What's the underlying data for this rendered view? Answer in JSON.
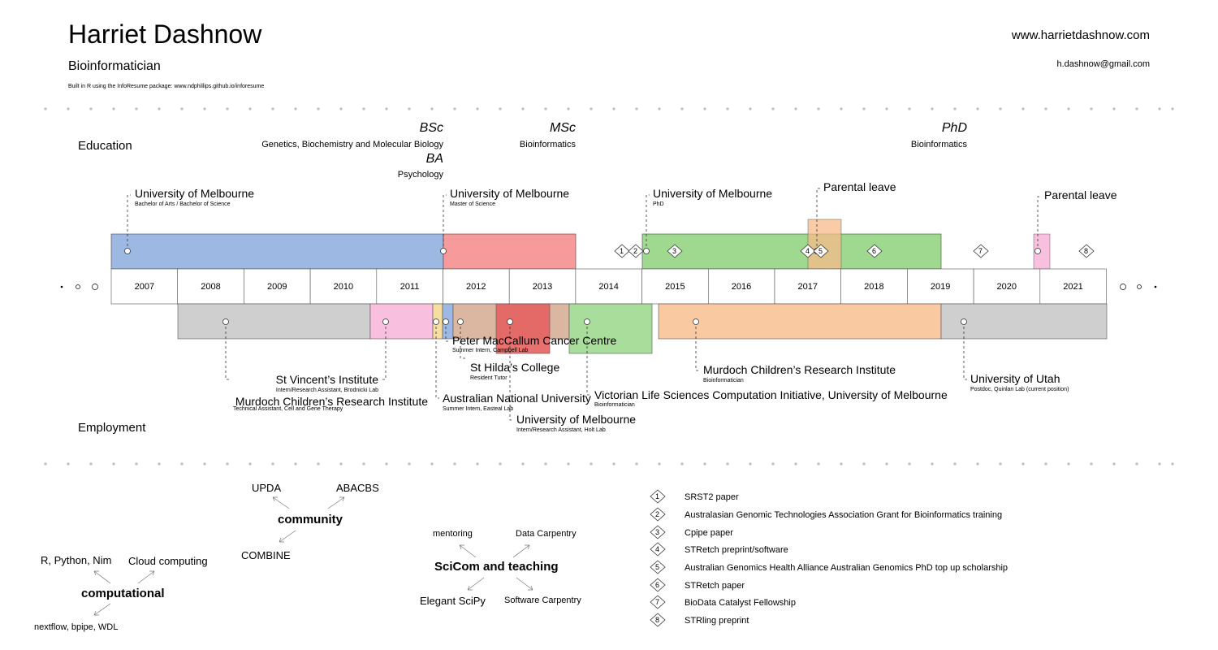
{
  "header": {
    "name": "Harriet Dashnow",
    "title": "Bioinformatician",
    "built_with": "Built in R using the InfoResume package: www.ndphillips.github.io/inforesume",
    "website": "www.harrietdashnow.com",
    "email": "h.dashnow@gmail.com"
  },
  "sections": {
    "education_label": "Education",
    "employment_label": "Employment"
  },
  "degrees": [
    {
      "degree": "BSc",
      "field": "Genetics, Biochemistry and Molecular Biology"
    },
    {
      "degree": "BA",
      "field": "Psychology"
    },
    {
      "degree": "MSc",
      "field": "Bioinformatics"
    },
    {
      "degree": "PhD",
      "field": "Bioinformatics"
    }
  ],
  "education": [
    {
      "institution": "University of Melbourne",
      "detail": "Bachelor of Arts / Bachelor of Science",
      "start": 2007,
      "end": 2012,
      "color": "#9db9e3"
    },
    {
      "institution": "University of Melbourne",
      "detail": "Master of Science",
      "start": 2012,
      "end": 2014,
      "color": "#f69a9c"
    },
    {
      "institution": "University of Melbourne",
      "detail": "PhD",
      "start": 2015,
      "end": 2019,
      "color": "#9fd990"
    },
    {
      "institution": "Parental leave",
      "detail": "",
      "start": 2017,
      "end": 2017.5,
      "color": "#f9c9a2"
    },
    {
      "institution": "Parental leave",
      "detail": "",
      "start": 2020.9,
      "end": 2021.15,
      "color": "#f8c0de"
    }
  ],
  "years": [
    "2007",
    "2008",
    "2009",
    "2010",
    "2011",
    "2012",
    "2013",
    "2014",
    "2015",
    "2016",
    "2017",
    "2018",
    "2019",
    "2020",
    "2021"
  ],
  "employment": [
    {
      "org": "St Vincent’s Institute",
      "role": "Intern/Research Assistant, Brodnicki Lab",
      "color": "#cfcfcf"
    },
    {
      "org": "Murdoch Children’s Research Institute",
      "role": "Technical Assistant, Cell and Gene Therapy",
      "color": "#f8c0de"
    },
    {
      "org": "Australian National University",
      "role": "Summer Intern, Easteal Lab",
      "color": "#f6dda0"
    },
    {
      "org": "Peter MacCallum Cancer Centre",
      "role": "Summer Intern, Campbell Lab",
      "color": "#9db9e3"
    },
    {
      "org": "St Hilda’s College",
      "role": "Resident Tutor",
      "color": "#dbb7a2"
    },
    {
      "org": "University of Melbourne",
      "role": "Intern/Research Assistant, Holt Lab",
      "color": "#e3625f"
    },
    {
      "org": "Victorian Life Sciences Computation Initiative, University of Melbourne",
      "role": "Bioinformatician",
      "color": "#9fd990"
    },
    {
      "org": "Murdoch Children’s Research Institute",
      "role": "Bioinformatician",
      "color": "#f9c9a2"
    },
    {
      "org": "University of Utah",
      "role": "Postdoc, Quinlan Lab (current position)",
      "color": "#cfcfcf"
    }
  ],
  "milestones": [
    "1",
    "2",
    "3",
    "4",
    "5",
    "6",
    "7",
    "8"
  ],
  "skills": {
    "computational": {
      "hub": "computational",
      "a": "R, Python, Nim",
      "b": "Cloud computing",
      "c": "nextflow, bpipe, WDL"
    },
    "community": {
      "hub": "community",
      "a": "UPDA",
      "b": "ABACBS",
      "c": "COMBINE"
    },
    "scicom": {
      "hub": "SciCom and teaching",
      "a": "mentoring",
      "b": "Data Carpentry",
      "c": "Elegant SciPy",
      "d": "Software Carpentry"
    }
  },
  "legend": [
    {
      "num": "1",
      "text": "SRST2 paper"
    },
    {
      "num": "2",
      "text": "Australasian Genomic Technologies Association Grant for Bioinformatics training"
    },
    {
      "num": "3",
      "text": "Cpipe paper"
    },
    {
      "num": "4",
      "text": "STRetch preprint/software"
    },
    {
      "num": "5",
      "text": "Australian Genomics Health Alliance Australian Genomics PhD top up scholarship"
    },
    {
      "num": "6",
      "text": "STRetch paper"
    },
    {
      "num": "7",
      "text": "BioData Catalyst Fellowship"
    },
    {
      "num": "8",
      "text": "STRling preprint"
    }
  ]
}
